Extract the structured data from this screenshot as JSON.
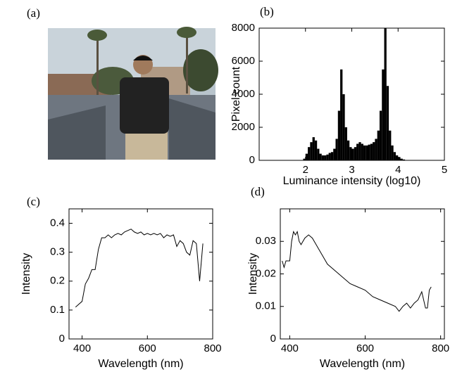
{
  "panel_labels": [
    "(a)",
    "(b)",
    "(c)",
    "(d)"
  ],
  "chart_data": [
    {
      "type": "histogram",
      "xlabel": "Luminance intensity (log10)",
      "ylabel": "Pixel count",
      "color": "#000000",
      "bins": [
        1.9,
        1.95,
        2.0,
        2.05,
        2.1,
        2.15,
        2.2,
        2.25,
        2.3,
        2.35,
        2.4,
        2.45,
        2.5,
        2.55,
        2.6,
        2.65,
        2.7,
        2.75,
        2.8,
        2.85,
        2.9,
        2.95,
        3.0,
        3.05,
        3.1,
        3.15,
        3.2,
        3.25,
        3.3,
        3.35,
        3.4,
        3.45,
        3.5,
        3.55,
        3.6,
        3.65,
        3.7,
        3.75,
        3.8,
        3.85,
        3.9,
        3.95,
        4.0,
        4.05,
        4.1,
        4.15,
        4.2,
        4.25
      ],
      "values": [
        0,
        100,
        400,
        800,
        1100,
        1400,
        1200,
        700,
        400,
        300,
        300,
        350,
        450,
        500,
        700,
        1300,
        3000,
        5500,
        4000,
        2000,
        1200,
        800,
        700,
        800,
        1000,
        1100,
        1000,
        900,
        900,
        950,
        1000,
        1100,
        1300,
        1800,
        3000,
        5500,
        8000,
        4500,
        1800,
        900,
        500,
        300,
        200,
        100,
        50,
        20,
        0
      ],
      "xlim": [
        1,
        5
      ],
      "xticks": [
        2,
        3,
        4,
        5
      ],
      "ylim": [
        0,
        8000
      ],
      "yticks": [
        0,
        2000,
        4000,
        6000,
        8000
      ]
    },
    {
      "type": "line",
      "xlabel": "Wavelength (nm)",
      "ylabel": "Intensity",
      "color": "#000000",
      "x": [
        380,
        390,
        400,
        410,
        420,
        430,
        440,
        450,
        460,
        470,
        480,
        490,
        500,
        510,
        520,
        530,
        540,
        550,
        560,
        570,
        580,
        590,
        600,
        610,
        620,
        630,
        640,
        650,
        660,
        670,
        680,
        690,
        700,
        710,
        720,
        730,
        740,
        750,
        760,
        770
      ],
      "values": [
        0.11,
        0.12,
        0.13,
        0.19,
        0.21,
        0.24,
        0.24,
        0.31,
        0.35,
        0.35,
        0.36,
        0.35,
        0.36,
        0.365,
        0.36,
        0.37,
        0.375,
        0.38,
        0.37,
        0.365,
        0.37,
        0.36,
        0.365,
        0.36,
        0.365,
        0.36,
        0.365,
        0.35,
        0.36,
        0.355,
        0.36,
        0.32,
        0.34,
        0.33,
        0.3,
        0.29,
        0.34,
        0.33,
        0.2,
        0.33
      ],
      "xlim": [
        360,
        800
      ],
      "xticks": [
        400,
        600,
        800
      ],
      "ylim": [
        0,
        0.45
      ],
      "yticks": [
        0,
        0.1,
        0.2,
        0.3,
        0.4
      ]
    },
    {
      "type": "line",
      "xlabel": "Wavelength (nm)",
      "ylabel": "Intensity",
      "color": "#000000",
      "x": [
        380,
        385,
        390,
        400,
        405,
        410,
        415,
        420,
        425,
        430,
        440,
        450,
        460,
        470,
        480,
        490,
        500,
        520,
        540,
        560,
        580,
        600,
        620,
        640,
        660,
        680,
        690,
        700,
        710,
        720,
        730,
        740,
        750,
        755,
        760,
        765,
        770,
        775
      ],
      "values": [
        0.024,
        0.022,
        0.024,
        0.024,
        0.03,
        0.033,
        0.032,
        0.033,
        0.03,
        0.029,
        0.031,
        0.032,
        0.031,
        0.029,
        0.027,
        0.025,
        0.023,
        0.021,
        0.019,
        0.017,
        0.016,
        0.015,
        0.013,
        0.012,
        0.011,
        0.01,
        0.0085,
        0.01,
        0.011,
        0.0095,
        0.011,
        0.012,
        0.0145,
        0.012,
        0.0095,
        0.0095,
        0.015,
        0.016
      ],
      "xlim": [
        375,
        810
      ],
      "xticks": [
        400,
        600,
        800
      ],
      "ylim": [
        0,
        0.04
      ],
      "yticks": [
        0,
        0.01,
        0.02,
        0.03
      ]
    }
  ]
}
